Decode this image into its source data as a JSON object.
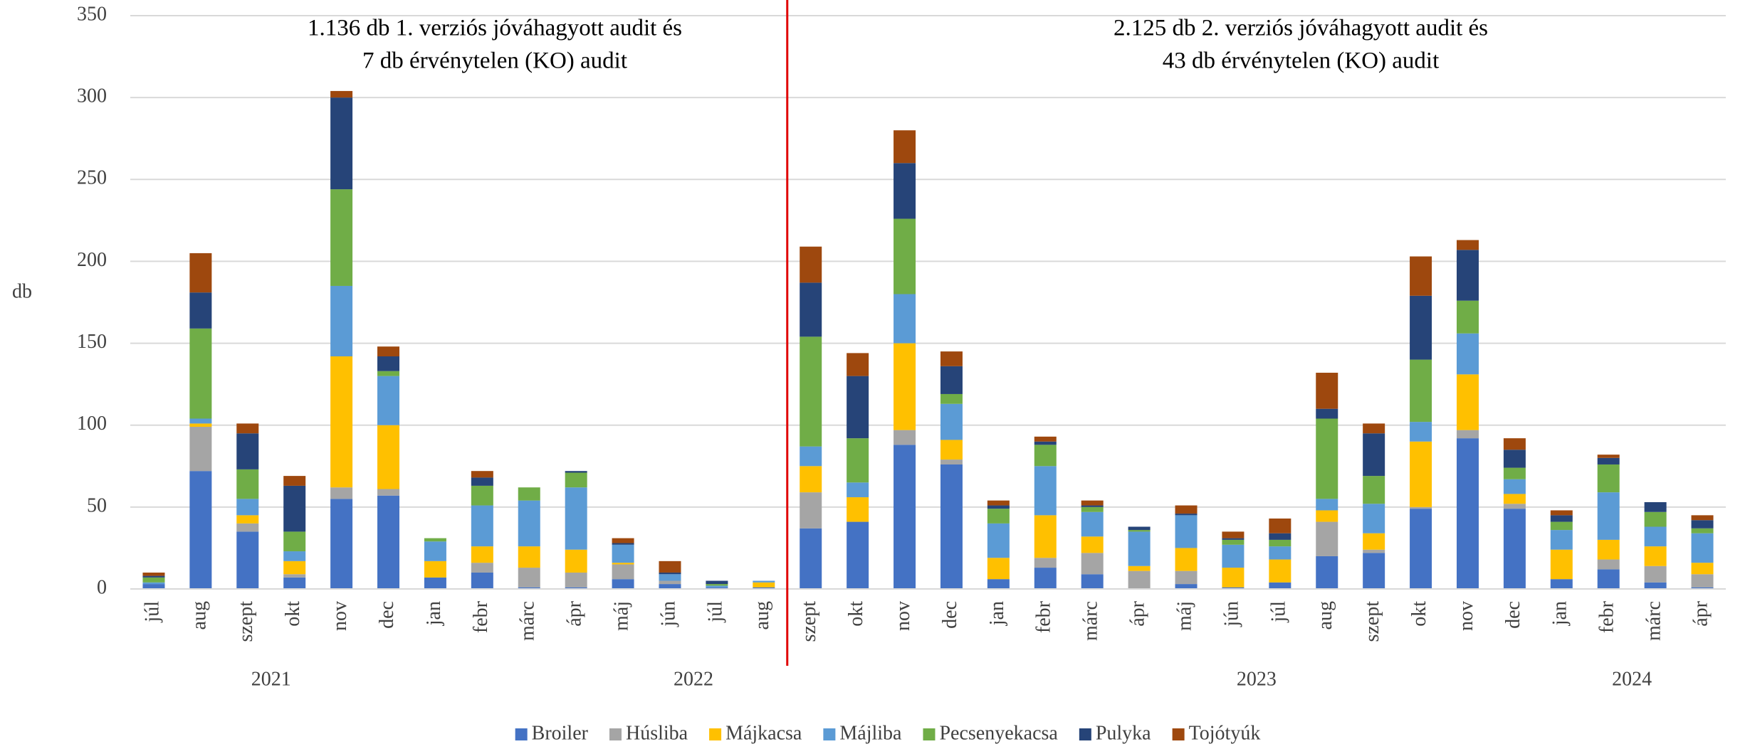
{
  "chart_data": {
    "type": "stacked_bar",
    "ylabel": "db",
    "ylim": [
      0,
      350
    ],
    "yticks": [
      0,
      50,
      100,
      150,
      200,
      250,
      300,
      350
    ],
    "grid": true,
    "categories": [
      "júl",
      "aug",
      "szept",
      "okt",
      "nov",
      "dec",
      "jan",
      "febr",
      "márc",
      "ápr",
      "máj",
      "jún",
      "júl",
      "aug",
      "szept",
      "okt",
      "nov",
      "dec",
      "jan",
      "febr",
      "márc",
      "ápr",
      "máj",
      "jún",
      "júl",
      "aug",
      "szept",
      "okt",
      "nov",
      "dec",
      "jan",
      "febr",
      "márc",
      "ápr"
    ],
    "groups": [
      {
        "label": "2021",
        "span": 6
      },
      {
        "label": "2022",
        "span": 12
      },
      {
        "label": "2023",
        "span": 12
      },
      {
        "label": "2024",
        "span": 4
      }
    ],
    "annotations": [
      {
        "lines": [
          "1.136 db 1. verziós jóváhagyott audit és",
          "7 db érvénytelen (KO) audit"
        ]
      },
      {
        "lines": [
          "2.125 db 2. verziós jóváhagyott audit és",
          "43 db érvénytelen (KO) audit"
        ]
      }
    ],
    "series": [
      {
        "name": "Broiler",
        "color": "#4472c4",
        "values": [
          3,
          72,
          35,
          7,
          55,
          57,
          7,
          10,
          1,
          1,
          6,
          3,
          1,
          1,
          37,
          41,
          88,
          76,
          6,
          13,
          9,
          0,
          3,
          1,
          4,
          20,
          22,
          49,
          92,
          49,
          6,
          12,
          4,
          1
        ]
      },
      {
        "name": "Húsliba",
        "color": "#a5a5a5",
        "values": [
          0,
          27,
          5,
          2,
          7,
          4,
          0,
          6,
          12,
          9,
          9,
          2,
          0,
          0,
          22,
          0,
          9,
          3,
          0,
          6,
          13,
          11,
          8,
          0,
          0,
          21,
          2,
          1,
          5,
          3,
          0,
          6,
          10,
          8
        ]
      },
      {
        "name": "Májkacsa",
        "color": "#ffc000",
        "values": [
          0,
          2,
          5,
          8,
          80,
          39,
          10,
          10,
          13,
          14,
          1,
          0,
          0,
          3,
          16,
          15,
          53,
          12,
          13,
          26,
          10,
          3,
          14,
          12,
          14,
          7,
          10,
          40,
          34,
          6,
          18,
          12,
          12,
          7
        ]
      },
      {
        "name": "Májliba",
        "color": "#5b9bd5",
        "values": [
          1,
          3,
          10,
          6,
          43,
          30,
          12,
          25,
          28,
          38,
          11,
          4,
          1,
          1,
          12,
          9,
          30,
          22,
          21,
          30,
          15,
          21,
          20,
          14,
          8,
          7,
          18,
          12,
          25,
          9,
          12,
          29,
          12,
          18
        ]
      },
      {
        "name": "Pecsenyekacsa",
        "color": "#70ad47",
        "values": [
          3,
          55,
          18,
          12,
          59,
          3,
          2,
          12,
          8,
          9,
          0,
          0,
          1,
          0,
          67,
          27,
          46,
          6,
          9,
          13,
          3,
          1,
          0,
          3,
          4,
          49,
          17,
          38,
          20,
          7,
          5,
          17,
          9,
          3
        ]
      },
      {
        "name": "Pulyka",
        "color": "#264478",
        "values": [
          1,
          22,
          22,
          28,
          56,
          9,
          0,
          5,
          0,
          1,
          1,
          1,
          2,
          0,
          33,
          38,
          34,
          17,
          2,
          2,
          1,
          2,
          1,
          1,
          4,
          6,
          26,
          39,
          31,
          11,
          4,
          4,
          6,
          5
        ]
      },
      {
        "name": "Tojótyúk",
        "color": "#9e480e",
        "values": [
          2,
          24,
          6,
          6,
          4,
          6,
          0,
          4,
          0,
          0,
          3,
          7,
          0,
          0,
          22,
          14,
          20,
          9,
          3,
          3,
          3,
          0,
          5,
          4,
          9,
          22,
          6,
          24,
          6,
          7,
          3,
          2,
          0,
          3
        ]
      }
    ]
  }
}
